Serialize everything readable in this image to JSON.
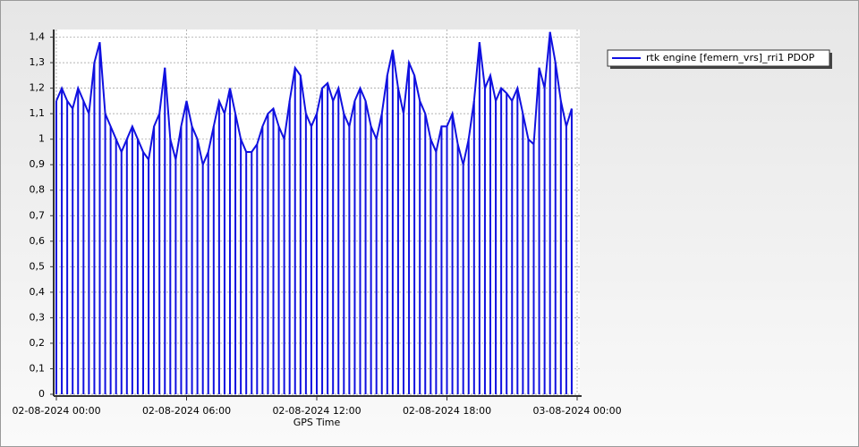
{
  "chart_data": {
    "type": "line",
    "x_label": "GPS Time",
    "x": [
      "02-08-2024 00:00",
      "02-08-2024 00:15",
      "02-08-2024 00:30",
      "02-08-2024 00:45",
      "02-08-2024 01:00",
      "02-08-2024 01:15",
      "02-08-2024 01:30",
      "02-08-2024 01:45",
      "02-08-2024 02:00",
      "02-08-2024 02:15",
      "02-08-2024 02:30",
      "02-08-2024 02:45",
      "02-08-2024 03:00",
      "02-08-2024 03:15",
      "02-08-2024 03:30",
      "02-08-2024 03:45",
      "02-08-2024 04:00",
      "02-08-2024 04:15",
      "02-08-2024 04:30",
      "02-08-2024 04:45",
      "02-08-2024 05:00",
      "02-08-2024 05:15",
      "02-08-2024 05:30",
      "02-08-2024 05:45",
      "02-08-2024 06:00",
      "02-08-2024 06:15",
      "02-08-2024 06:30",
      "02-08-2024 06:45",
      "02-08-2024 07:00",
      "02-08-2024 07:15",
      "02-08-2024 07:30",
      "02-08-2024 07:45",
      "02-08-2024 08:00",
      "02-08-2024 08:15",
      "02-08-2024 08:30",
      "02-08-2024 08:45",
      "02-08-2024 09:00",
      "02-08-2024 09:15",
      "02-08-2024 09:30",
      "02-08-2024 09:45",
      "02-08-2024 10:00",
      "02-08-2024 10:15",
      "02-08-2024 10:30",
      "02-08-2024 10:45",
      "02-08-2024 11:00",
      "02-08-2024 11:15",
      "02-08-2024 11:30",
      "02-08-2024 11:45",
      "02-08-2024 12:00",
      "02-08-2024 12:15",
      "02-08-2024 12:30",
      "02-08-2024 12:45",
      "02-08-2024 13:00",
      "02-08-2024 13:15",
      "02-08-2024 13:30",
      "02-08-2024 13:45",
      "02-08-2024 14:00",
      "02-08-2024 14:15",
      "02-08-2024 14:30",
      "02-08-2024 14:45",
      "02-08-2024 15:00",
      "02-08-2024 15:15",
      "02-08-2024 15:30",
      "02-08-2024 15:45",
      "02-08-2024 16:00",
      "02-08-2024 16:15",
      "02-08-2024 16:30",
      "02-08-2024 16:45",
      "02-08-2024 17:00",
      "02-08-2024 17:15",
      "02-08-2024 17:30",
      "02-08-2024 17:45",
      "02-08-2024 18:00",
      "02-08-2024 18:15",
      "02-08-2024 18:30",
      "02-08-2024 18:45",
      "02-08-2024 19:00",
      "02-08-2024 19:15",
      "02-08-2024 19:30",
      "02-08-2024 19:45",
      "02-08-2024 20:00",
      "02-08-2024 20:15",
      "02-08-2024 20:30",
      "02-08-2024 20:45",
      "02-08-2024 21:00",
      "02-08-2024 21:15",
      "02-08-2024 21:30",
      "02-08-2024 21:45",
      "02-08-2024 22:00",
      "02-08-2024 22:15",
      "02-08-2024 22:30",
      "02-08-2024 22:45",
      "02-08-2024 23:00",
      "02-08-2024 23:15",
      "02-08-2024 23:30",
      "02-08-2024 23:45"
    ],
    "series": [
      {
        "name": "rtk engine [femern_vrs]_rri1 PDOP",
        "color": "#1010e0",
        "values": [
          1.15,
          1.2,
          1.15,
          1.12,
          1.2,
          1.15,
          1.1,
          1.3,
          1.38,
          1.1,
          1.05,
          1.0,
          0.95,
          1.0,
          1.05,
          1.0,
          0.95,
          0.92,
          1.05,
          1.1,
          1.28,
          1.0,
          0.92,
          1.05,
          1.15,
          1.05,
          1.0,
          0.9,
          0.95,
          1.05,
          1.15,
          1.1,
          1.2,
          1.1,
          1.0,
          0.95,
          0.95,
          0.98,
          1.05,
          1.1,
          1.12,
          1.05,
          1.0,
          1.15,
          1.28,
          1.25,
          1.1,
          1.05,
          1.1,
          1.2,
          1.22,
          1.15,
          1.2,
          1.1,
          1.05,
          1.15,
          1.2,
          1.15,
          1.05,
          1.0,
          1.1,
          1.25,
          1.35,
          1.2,
          1.1,
          1.3,
          1.25,
          1.15,
          1.1,
          1.0,
          0.95,
          1.05,
          1.05,
          1.1,
          0.98,
          0.9,
          1.0,
          1.15,
          1.38,
          1.2,
          1.25,
          1.15,
          1.2,
          1.18,
          1.15,
          1.2,
          1.1,
          1.0,
          0.98,
          1.28,
          1.2,
          1.42,
          1.3,
          1.15,
          1.05,
          1.12
        ]
      }
    ],
    "drop_to_zero": true,
    "xlim": [
      "02-08-2024 00:00",
      "03-08-2024 00:00"
    ],
    "xticks": [
      "02-08-2024 00:00",
      "02-08-2024 06:00",
      "02-08-2024 12:00",
      "02-08-2024 18:00",
      "03-08-2024 00:00"
    ],
    "ylim": [
      0,
      1.43
    ],
    "yticks": [
      0,
      {
        "value": 0.1,
        "label": "0,1"
      },
      {
        "value": 0.2,
        "label": "0,2"
      },
      {
        "value": 0.3,
        "label": "0,3"
      },
      {
        "value": 0.4,
        "label": "0,4"
      },
      {
        "value": 0.5,
        "label": "0,5"
      },
      {
        "value": 0.6,
        "label": "0,6"
      },
      {
        "value": 0.7,
        "label": "0,7"
      },
      {
        "value": 0.8,
        "label": "0,8"
      },
      {
        "value": 0.9,
        "label": "0,9"
      },
      1,
      {
        "value": 1.1,
        "label": "1,1"
      },
      {
        "value": 1.2,
        "label": "1,2"
      },
      {
        "value": 1.3,
        "label": "1,3"
      },
      {
        "value": 1.4,
        "label": "1,4"
      }
    ],
    "grid": true,
    "legend": "right"
  }
}
